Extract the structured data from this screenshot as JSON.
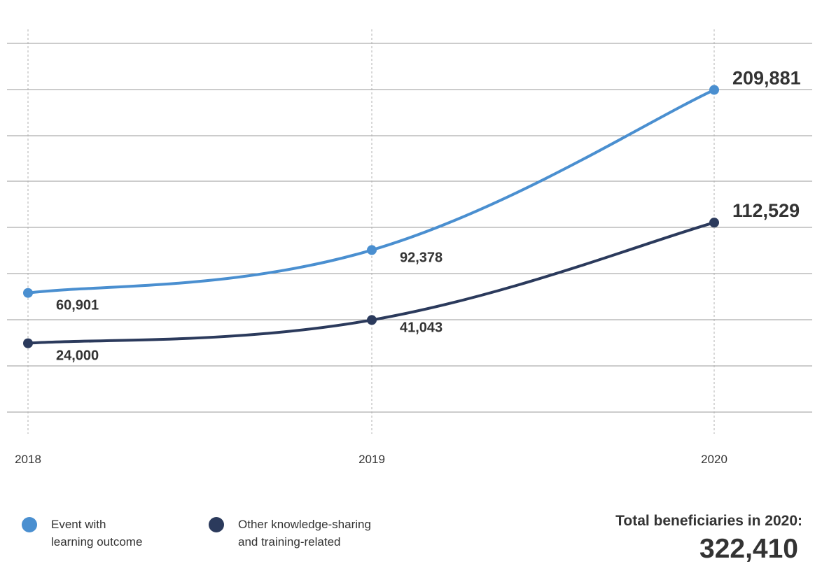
{
  "chart_data": {
    "type": "line",
    "x": [
      "2018",
      "2019",
      "2020"
    ],
    "series": [
      {
        "name": "Event with learning outcome",
        "values": [
          60901,
          92378,
          209881
        ],
        "color": "#4a8fd0"
      },
      {
        "name": "Other knowledge-sharing and training-related",
        "values": [
          24000,
          41043,
          112529
        ],
        "color": "#2b3a5c"
      }
    ],
    "data_labels": [
      [
        "60,901",
        "92,378",
        "209,881"
      ],
      [
        "24,000",
        "41,043",
        "112,529"
      ]
    ],
    "ylim": [
      -26500,
      244000
    ],
    "grid": "horizontal",
    "legend_position": "bottom-left"
  },
  "legend": {
    "item1_lines": [
      "Event with",
      "learning outcome"
    ],
    "item2_lines": [
      "Other knowledge-sharing",
      "and training-related"
    ]
  },
  "total": {
    "label": "Total beneficiaries in 2020:",
    "value": "322,410"
  }
}
